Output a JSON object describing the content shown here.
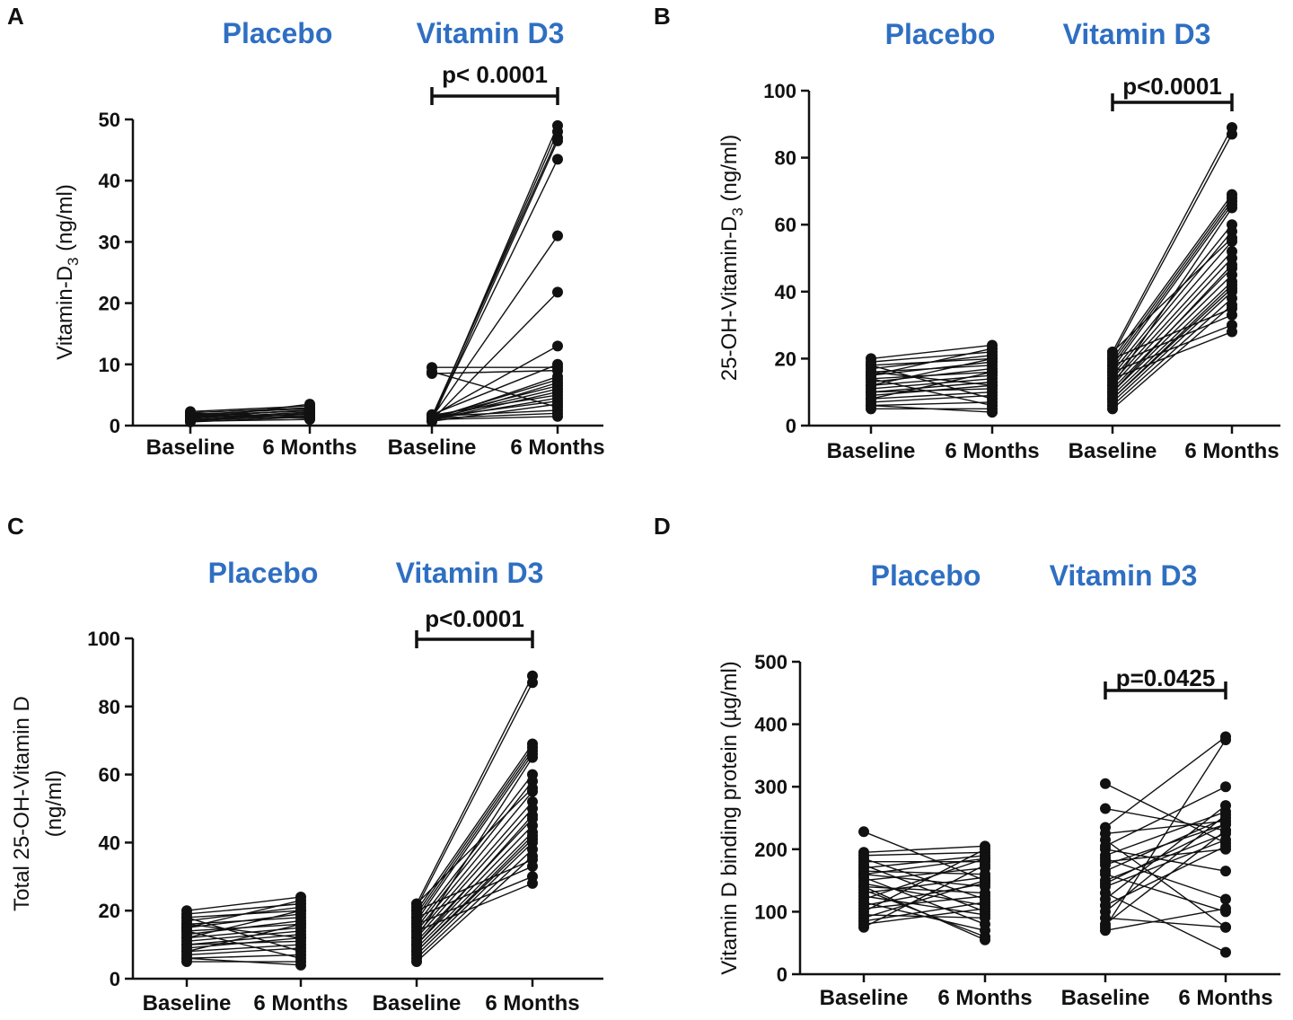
{
  "colors": {
    "group_label": "#2f6fc2",
    "ink": "#111111"
  },
  "chart_data": [
    {
      "type": "line",
      "panel": "A",
      "ylabel": "Vitamin-D3 (ng/ml)",
      "ylabel_main": "Vitamin-D",
      "ylabel_sub": "3",
      "ylabel_tail": " (ng/ml)",
      "ylim": [
        0,
        50
      ],
      "yticks": [
        0,
        10,
        20,
        30,
        40,
        50
      ],
      "categories": [
        "Baseline",
        "6 Months",
        "Baseline",
        "6 Months"
      ],
      "groups": [
        "Placebo",
        "Vitamin D3"
      ],
      "significance": {
        "label": "p< 0.0001",
        "between": [
          2,
          3
        ]
      },
      "series": [
        {
          "name": "Placebo",
          "pairs": [
            [
              2.3,
              3.2
            ],
            [
              1.8,
              2.8
            ],
            [
              1.5,
              2.5
            ],
            [
              1.2,
              2.2
            ],
            [
              1.0,
              2.0
            ],
            [
              0.8,
              1.6
            ],
            [
              2.0,
              1.5
            ],
            [
              1.6,
              1.2
            ],
            [
              1.3,
              2.6
            ],
            [
              0.9,
              1.9
            ],
            [
              0.6,
              1.4
            ],
            [
              1.1,
              3.5
            ],
            [
              1.7,
              2.4
            ],
            [
              0.7,
              1.0
            ],
            [
              1.4,
              1.8
            ],
            [
              2.1,
              2.9
            ]
          ]
        },
        {
          "name": "Vitamin D3",
          "pairs": [
            [
              1.0,
              49
            ],
            [
              1.2,
              48
            ],
            [
              1.5,
              47
            ],
            [
              0.8,
              46.5
            ],
            [
              1.1,
              43.5
            ],
            [
              1.3,
              31
            ],
            [
              0.9,
              21.8
            ],
            [
              1.6,
              13
            ],
            [
              9.5,
              9.5
            ],
            [
              8.5,
              9.0
            ],
            [
              1.0,
              8.0
            ],
            [
              1.2,
              7.5
            ],
            [
              0.8,
              7.0
            ],
            [
              1.4,
              6.5
            ],
            [
              1.1,
              6.0
            ],
            [
              0.9,
              5.5
            ],
            [
              1.7,
              5.0
            ],
            [
              1.0,
              4.5
            ],
            [
              1.3,
              4.0
            ],
            [
              0.7,
              3.5
            ],
            [
              8.8,
              3.0
            ],
            [
              1.5,
              2.5
            ],
            [
              1.2,
              2.0
            ],
            [
              1.0,
              1.5
            ],
            [
              1.8,
              10
            ]
          ]
        }
      ]
    },
    {
      "type": "line",
      "panel": "B",
      "ylabel": "25-OH-Vitamin-D3 (ng/ml)",
      "ylabel_main": "25-OH-Vitamin-D",
      "ylabel_sub": "3",
      "ylabel_tail": " (ng/ml)",
      "ylim": [
        0,
        100
      ],
      "yticks": [
        0,
        20,
        40,
        60,
        80,
        100
      ],
      "categories": [
        "Baseline",
        "6 Months",
        "Baseline",
        "6 Months"
      ],
      "groups": [
        "Placebo",
        "Vitamin D3"
      ],
      "significance": {
        "label": "p<0.0001",
        "between": [
          2,
          3
        ]
      },
      "series": [
        {
          "name": "Placebo",
          "pairs": [
            [
              20,
              24
            ],
            [
              19,
              22
            ],
            [
              18,
              20
            ],
            [
              17,
              21
            ],
            [
              16,
              18
            ],
            [
              15,
              19
            ],
            [
              14,
              16
            ],
            [
              13,
              17
            ],
            [
              12,
              15
            ],
            [
              11,
              14
            ],
            [
              10,
              13
            ],
            [
              9,
              12
            ],
            [
              8,
              10
            ],
            [
              7,
              9
            ],
            [
              6,
              7
            ],
            [
              5,
              5
            ],
            [
              18,
              8
            ],
            [
              14,
              6
            ],
            [
              12,
              20
            ],
            [
              10,
              11
            ],
            [
              8,
              16
            ],
            [
              16,
              12
            ],
            [
              6,
              4
            ],
            [
              15,
              23
            ]
          ]
        },
        {
          "name": "Vitamin D3",
          "pairs": [
            [
              22,
              89
            ],
            [
              21,
              87
            ],
            [
              20,
              69
            ],
            [
              19,
              68
            ],
            [
              18,
              67
            ],
            [
              17,
              66
            ],
            [
              16,
              60
            ],
            [
              15,
              58
            ],
            [
              14,
              55
            ],
            [
              13,
              52
            ],
            [
              12,
              50
            ],
            [
              11,
              47
            ],
            [
              10,
              45
            ],
            [
              9,
              43
            ],
            [
              8,
              41
            ],
            [
              7,
              40
            ],
            [
              6,
              38
            ],
            [
              5,
              36
            ],
            [
              20,
              35
            ],
            [
              18,
              33
            ],
            [
              16,
              30
            ],
            [
              14,
              28
            ],
            [
              12,
              65
            ],
            [
              10,
              48
            ],
            [
              8,
              42
            ],
            [
              22,
              56
            ]
          ]
        }
      ]
    },
    {
      "type": "line",
      "panel": "C",
      "ylabel": "Total 25-OH-Vitamin D (ng/ml)",
      "ylabel_line1": "Total 25-OH-Vitamin D",
      "ylabel_line2": "(ng/ml)",
      "ylim": [
        0,
        100
      ],
      "yticks": [
        0,
        20,
        40,
        60,
        80,
        100
      ],
      "categories": [
        "Baseline",
        "6 Months",
        "Baseline",
        "6 Months"
      ],
      "groups": [
        "Placebo",
        "Vitamin D3"
      ],
      "significance": {
        "label": "p<0.0001",
        "between": [
          2,
          3
        ]
      },
      "series": [
        {
          "name": "Placebo",
          "pairs": [
            [
              20,
              24
            ],
            [
              19,
              22
            ],
            [
              18,
              20
            ],
            [
              17,
              21
            ],
            [
              16,
              18
            ],
            [
              15,
              19
            ],
            [
              14,
              16
            ],
            [
              13,
              17
            ],
            [
              12,
              15
            ],
            [
              11,
              14
            ],
            [
              10,
              13
            ],
            [
              9,
              12
            ],
            [
              8,
              10
            ],
            [
              7,
              9
            ],
            [
              6,
              7
            ],
            [
              5,
              5
            ],
            [
              18,
              8
            ],
            [
              14,
              6
            ],
            [
              12,
              20
            ],
            [
              10,
              11
            ],
            [
              8,
              16
            ],
            [
              16,
              12
            ],
            [
              6,
              4
            ],
            [
              15,
              23
            ]
          ]
        },
        {
          "name": "Vitamin D3",
          "pairs": [
            [
              22,
              89
            ],
            [
              21,
              87
            ],
            [
              20,
              69
            ],
            [
              19,
              68
            ],
            [
              18,
              67
            ],
            [
              17,
              66
            ],
            [
              16,
              60
            ],
            [
              15,
              58
            ],
            [
              14,
              55
            ],
            [
              13,
              52
            ],
            [
              12,
              50
            ],
            [
              11,
              47
            ],
            [
              10,
              45
            ],
            [
              9,
              43
            ],
            [
              8,
              41
            ],
            [
              7,
              40
            ],
            [
              6,
              38
            ],
            [
              5,
              36
            ],
            [
              20,
              35
            ],
            [
              18,
              33
            ],
            [
              16,
              30
            ],
            [
              14,
              28
            ],
            [
              12,
              65
            ],
            [
              10,
              48
            ],
            [
              8,
              42
            ],
            [
              22,
              56
            ]
          ]
        }
      ]
    },
    {
      "type": "line",
      "panel": "D",
      "ylabel": "Vitamin D binding protein (µg/ml)",
      "ylim": [
        0,
        500
      ],
      "yticks": [
        0,
        100,
        200,
        300,
        400,
        500
      ],
      "categories": [
        "Baseline",
        "6 Months",
        "Baseline",
        "6 Months"
      ],
      "groups": [
        "Placebo",
        "Vitamin D3"
      ],
      "significance": {
        "label": "p=0.0425",
        "between": [
          2,
          3
        ]
      },
      "series": [
        {
          "name": "Placebo",
          "pairs": [
            [
              228,
              150
            ],
            [
              195,
              205
            ],
            [
              190,
              195
            ],
            [
              185,
              120
            ],
            [
              180,
              180
            ],
            [
              175,
              100
            ],
            [
              170,
              190
            ],
            [
              165,
              160
            ],
            [
              160,
              140
            ],
            [
              155,
              80
            ],
            [
              150,
              170
            ],
            [
              145,
              110
            ],
            [
              140,
              130
            ],
            [
              135,
              60
            ],
            [
              130,
              155
            ],
            [
              125,
              95
            ],
            [
              120,
              185
            ],
            [
              115,
              70
            ],
            [
              110,
              145
            ],
            [
              105,
              125
            ],
            [
              100,
              200
            ],
            [
              95,
              90
            ],
            [
              90,
              150
            ],
            [
              85,
              115
            ],
            [
              80,
              105
            ],
            [
              75,
              175
            ],
            [
              140,
              55
            ],
            [
              160,
              185
            ]
          ]
        },
        {
          "name": "Vitamin D3",
          "pairs": [
            [
              305,
              210
            ],
            [
              265,
              230
            ],
            [
              235,
              380
            ],
            [
              225,
              245
            ],
            [
              215,
              75
            ],
            [
              205,
              300
            ],
            [
              200,
              165
            ],
            [
              190,
              260
            ],
            [
              185,
              120
            ],
            [
              175,
              240
            ],
            [
              165,
              250
            ],
            [
              160,
              100
            ],
            [
              150,
              225
            ],
            [
              140,
              215
            ],
            [
              130,
              35
            ],
            [
              120,
              270
            ],
            [
              110,
              205
            ],
            [
              100,
              255
            ],
            [
              90,
              75
            ],
            [
              80,
              230
            ],
            [
              75,
              375
            ],
            [
              70,
              105
            ],
            [
              180,
              200
            ],
            [
              145,
              240
            ]
          ]
        }
      ]
    }
  ]
}
